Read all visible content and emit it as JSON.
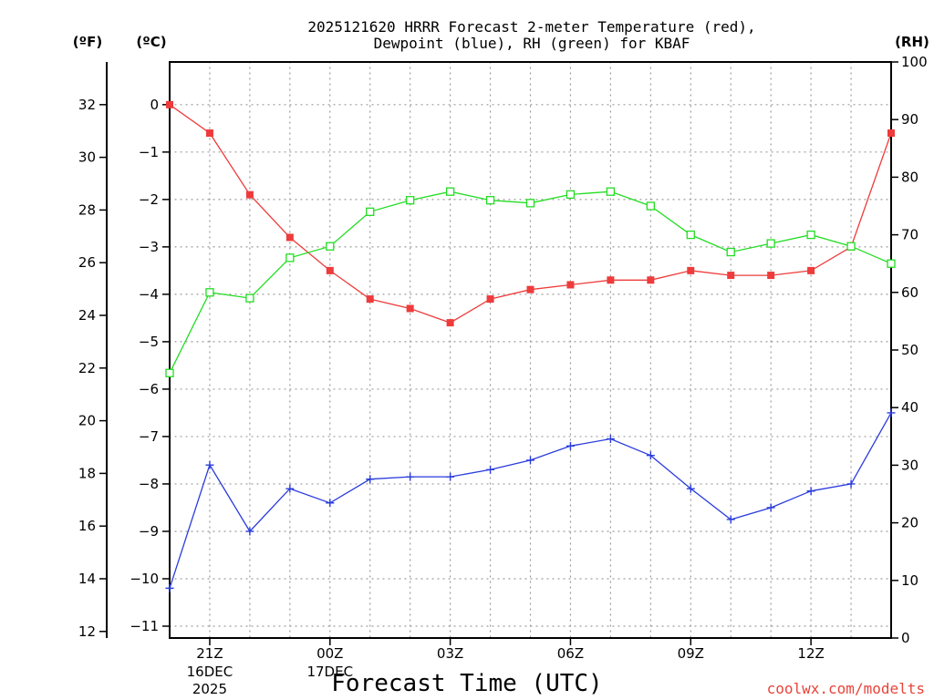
{
  "chart_data": {
    "type": "line",
    "title_line1": "2025121620 HRRR Forecast 2-meter Temperature (red),",
    "title_line2": "Dewpoint (blue), RH (green) for KBAF",
    "xlabel": "Forecast Time (UTC)",
    "credit": "coolwx.com/modelts",
    "units": {
      "f": "(ºF)",
      "c": "(ºC)",
      "rh": "(RH)"
    },
    "celsius_range": [
      -11.25,
      0.9
    ],
    "rh_range": [
      0,
      100
    ],
    "celsius_ticks": [
      {
        "v": 0,
        "label": "0"
      },
      {
        "v": -1,
        "label": "−1"
      },
      {
        "v": -2,
        "label": "−2"
      },
      {
        "v": -3,
        "label": "−3"
      },
      {
        "v": -4,
        "label": "−4"
      },
      {
        "v": -5,
        "label": "−5"
      },
      {
        "v": -6,
        "label": "−6"
      },
      {
        "v": -7,
        "label": "−7"
      },
      {
        "v": -8,
        "label": "−8"
      },
      {
        "v": -9,
        "label": "−9"
      },
      {
        "v": -10,
        "label": "−10"
      },
      {
        "v": -11,
        "label": "−11"
      }
    ],
    "fahrenheit_ticks": [
      {
        "v": 32,
        "label": "32"
      },
      {
        "v": 30,
        "label": "30"
      },
      {
        "v": 28,
        "label": "28"
      },
      {
        "v": 26,
        "label": "26"
      },
      {
        "v": 24,
        "label": "24"
      },
      {
        "v": 22,
        "label": "22"
      },
      {
        "v": 20,
        "label": "20"
      },
      {
        "v": 18,
        "label": "18"
      },
      {
        "v": 16,
        "label": "16"
      },
      {
        "v": 14,
        "label": "14"
      },
      {
        "v": 12,
        "label": "12"
      }
    ],
    "rh_ticks": [
      {
        "v": 100,
        "label": "100"
      },
      {
        "v": 90,
        "label": "90"
      },
      {
        "v": 80,
        "label": "80"
      },
      {
        "v": 70,
        "label": "70"
      },
      {
        "v": 60,
        "label": "60"
      },
      {
        "v": 50,
        "label": "50"
      },
      {
        "v": 40,
        "label": "40"
      },
      {
        "v": 30,
        "label": "30"
      },
      {
        "v": 20,
        "label": "20"
      },
      {
        "v": 10,
        "label": "10"
      },
      {
        "v": 0,
        "label": "0"
      }
    ],
    "x_hours": [
      20,
      21,
      22,
      23,
      24,
      25,
      26,
      27,
      28,
      29,
      30,
      31,
      32,
      33,
      34,
      35,
      36,
      37,
      38
    ],
    "x_ticks": [
      {
        "hour": 21,
        "label": "21Z",
        "date": "16DEC",
        "year": "2025"
      },
      {
        "hour": 24,
        "label": "00Z",
        "date": "17DEC",
        "year": ""
      },
      {
        "hour": 27,
        "label": "03Z",
        "date": "",
        "year": ""
      },
      {
        "hour": 30,
        "label": "06Z",
        "date": "",
        "year": ""
      },
      {
        "hour": 33,
        "label": "09Z",
        "date": "",
        "year": ""
      },
      {
        "hour": 36,
        "label": "12Z",
        "date": "",
        "year": ""
      }
    ],
    "series": [
      {
        "name": "Temperature",
        "axis": "celsius",
        "color": "#ee3b3b",
        "marker": "filled-square",
        "values": [
          0.0,
          -0.6,
          -1.9,
          -2.8,
          -3.5,
          -4.1,
          -4.3,
          -4.6,
          -4.1,
          -3.9,
          -3.8,
          -3.7,
          -3.7,
          -3.5,
          -3.6,
          -3.6,
          -3.5,
          -3.0,
          -0.6
        ]
      },
      {
        "name": "Dewpoint",
        "axis": "celsius",
        "color": "#2a3cdc",
        "marker": "plus",
        "values": [
          -10.2,
          -7.6,
          -9.0,
          -8.1,
          -8.4,
          -7.9,
          -7.85,
          -7.85,
          -7.7,
          -7.5,
          -7.2,
          -7.05,
          -7.4,
          -8.1,
          -8.75,
          -8.5,
          -8.15,
          -8.0,
          -6.5
        ]
      },
      {
        "name": "RH",
        "axis": "rh",
        "color": "#22dd22",
        "marker": "open-square",
        "values": [
          46,
          60,
          59,
          66,
          68,
          74,
          76,
          77.5,
          76,
          75.5,
          77,
          77.5,
          75,
          70,
          67,
          68.5,
          70,
          68,
          65
        ]
      }
    ]
  }
}
